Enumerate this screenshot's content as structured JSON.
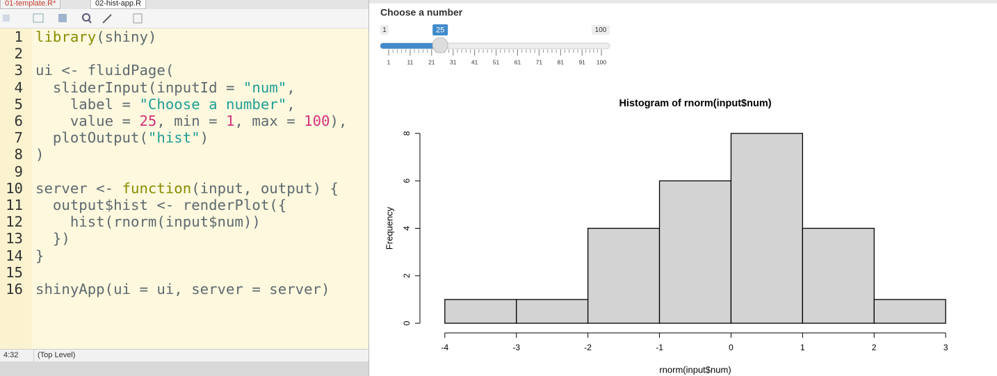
{
  "editor": {
    "tabs": [
      "01-template.R*",
      "02-hist-app.R"
    ],
    "lines": [
      {
        "number": "1",
        "tokens": [
          {
            "text": "library",
            "color": "#8c8c00"
          },
          {
            "text": "(shiny)",
            "color": "#5e6a70"
          }
        ]
      },
      {
        "number": "2",
        "tokens": []
      },
      {
        "number": "3",
        "tokens": [
          {
            "text": "ui <- fluidPage(",
            "color": "#5e6a70"
          }
        ]
      },
      {
        "number": "4",
        "tokens": [
          {
            "text": "  sliderInput(inputId = ",
            "color": "#5e6a70"
          },
          {
            "text": "\"num\"",
            "color": "#1f9e95"
          },
          {
            "text": ",",
            "color": "#5e6a70"
          }
        ]
      },
      {
        "number": "5",
        "tokens": [
          {
            "text": "    label = ",
            "color": "#5e6a70"
          },
          {
            "text": "\"Choose a number\"",
            "color": "#1f9e95"
          },
          {
            "text": ",",
            "color": "#5e6a70"
          }
        ]
      },
      {
        "number": "6",
        "tokens": [
          {
            "text": "    value = ",
            "color": "#5e6a70"
          },
          {
            "text": "25",
            "color": "#d3337c"
          },
          {
            "text": ", min = ",
            "color": "#5e6a70"
          },
          {
            "text": "1",
            "color": "#d3337c"
          },
          {
            "text": ", max = ",
            "color": "#5e6a70"
          },
          {
            "text": "100",
            "color": "#d3337c"
          },
          {
            "text": "),",
            "color": "#5e6a70"
          }
        ]
      },
      {
        "number": "7",
        "tokens": [
          {
            "text": "  plotOutput(",
            "color": "#5e6a70"
          },
          {
            "text": "\"hist\"",
            "color": "#1f9e95"
          },
          {
            "text": ")",
            "color": "#5e6a70"
          }
        ]
      },
      {
        "number": "8",
        "tokens": [
          {
            "text": ")",
            "color": "#5e6a70"
          }
        ]
      },
      {
        "number": "9",
        "tokens": []
      },
      {
        "number": "10",
        "tokens": [
          {
            "text": "server <- ",
            "color": "#5e6a70"
          },
          {
            "text": "function",
            "color": "#8c8c00"
          },
          {
            "text": "(input, output) {",
            "color": "#5e6a70"
          }
        ]
      },
      {
        "number": "11",
        "tokens": [
          {
            "text": "  output$hist <- renderPlot({",
            "color": "#5e6a70"
          }
        ]
      },
      {
        "number": "12",
        "tokens": [
          {
            "text": "    hist(rnorm(input$num))",
            "color": "#5e6a70"
          }
        ]
      },
      {
        "number": "13",
        "tokens": [
          {
            "text": "  })",
            "color": "#5e6a70"
          }
        ]
      },
      {
        "number": "14",
        "tokens": [
          {
            "text": "}",
            "color": "#5e6a70"
          }
        ]
      },
      {
        "number": "15",
        "tokens": []
      },
      {
        "number": "16",
        "tokens": [
          {
            "text": "shinyApp(ui = ui, server = server)",
            "color": "#5e6a70"
          }
        ]
      }
    ],
    "status": {
      "position": "4:32",
      "scope": "(Top Level)"
    }
  },
  "slider": {
    "label": "Choose a number",
    "min": 1,
    "max": 100,
    "value": 25,
    "ticks": [
      1,
      11,
      21,
      31,
      41,
      51,
      61,
      71,
      81,
      91,
      100
    ],
    "color": "#428bca"
  },
  "chart_data": {
    "type": "histogram",
    "title": "Histogram of rnorm(input$num)",
    "x_label": "rnorm(input$num)",
    "y_label": "Frequency",
    "bins": [
      -4,
      -3,
      -2,
      -1,
      0,
      1,
      2,
      3
    ],
    "values": [
      1,
      1,
      4,
      6,
      8,
      4,
      1
    ],
    "color": "#d3d3d3",
    "xlim": [
      -4.28,
      3.28
    ],
    "ylim": [
      -0.32,
      8.32
    ],
    "xticks": [
      -4,
      -3,
      -2,
      -1,
      0,
      1,
      2,
      3
    ],
    "yticks": [
      0,
      2,
      4,
      6,
      8
    ]
  }
}
